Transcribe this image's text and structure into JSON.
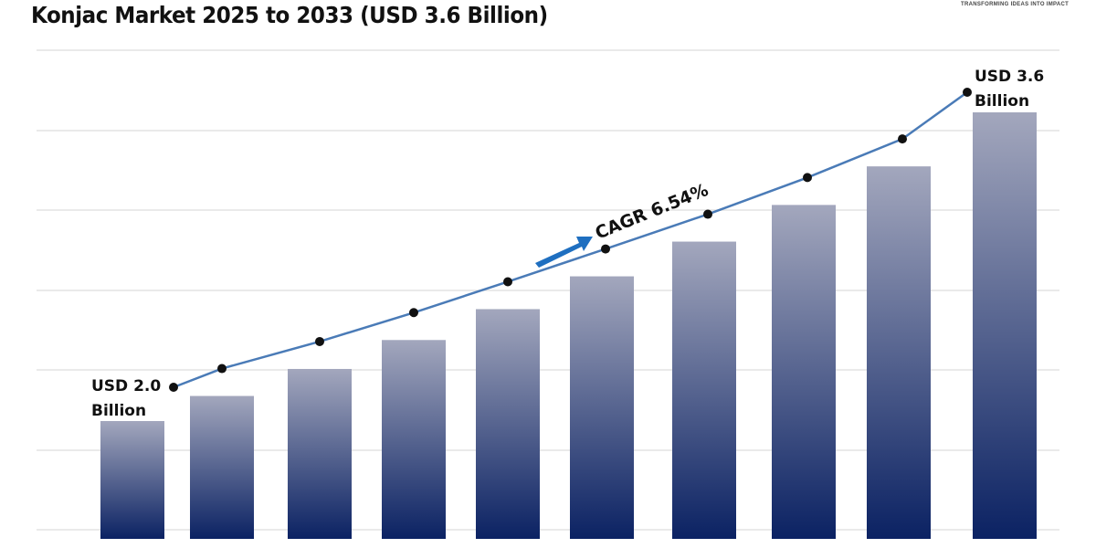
{
  "title": "Konjac Market 2025 to 2033 (USD 3.6 Billion)",
  "logo_tagline": "TRANSFORMING IDEAS INTO IMPACT",
  "chart_data": {
    "type": "bar",
    "title": "Konjac Market 2025 to 2033 (USD 3.6 Billion)",
    "unit": "USD Billion",
    "values": [
      2.0,
      2.13,
      2.27,
      2.42,
      2.58,
      2.75,
      2.93,
      3.12,
      3.32,
      3.6
    ],
    "line_overlay": true,
    "grid": true,
    "annotations": {
      "start_label": [
        "USD 2.0",
        "Billion"
      ],
      "end_label": [
        "USD 3.6",
        "Billion"
      ],
      "cagr": "CAGR 6.54%"
    },
    "colors": {
      "bar_top": "#a3a7bd",
      "bar_bottom": "#0b2263",
      "line": "#4a7bb7",
      "marker": "#111111",
      "arrow": "#1f6fc0",
      "grid": "#e3e3e3"
    }
  }
}
